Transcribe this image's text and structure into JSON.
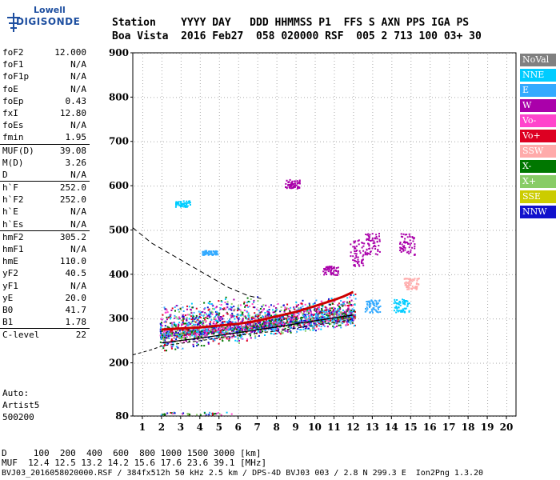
{
  "logo": {
    "line1": "Lowell",
    "line2": "DIGISONDE"
  },
  "header": {
    "line1": "Station    YYYY DAY   DDD HHMMSS P1  FFS S AXN PPS IGA PS",
    "line2": "Boa Vista  2016 Feb27  058 020000 RSF  005 2 713 100 03+ 30"
  },
  "params": [
    [
      {
        "k": "foF2",
        "v": "12.000"
      },
      {
        "k": "foF1",
        "v": "N/A"
      },
      {
        "k": "foF1p",
        "v": "N/A"
      },
      {
        "k": "foE",
        "v": "N/A"
      },
      {
        "k": "foEp",
        "v": "0.43"
      },
      {
        "k": "fxI",
        "v": "12.80"
      },
      {
        "k": "foEs",
        "v": "N/A"
      },
      {
        "k": "fmin",
        "v": "1.95"
      }
    ],
    [
      {
        "k": "MUF(D)",
        "v": "39.08"
      },
      {
        "k": "M(D)",
        "v": "3.26"
      },
      {
        "k": "D",
        "v": "N/A"
      }
    ],
    [
      {
        "k": "h`F",
        "v": "252.0"
      },
      {
        "k": "h`F2",
        "v": "252.0"
      },
      {
        "k": "h`E",
        "v": "N/A"
      },
      {
        "k": "h`Es",
        "v": "N/A"
      }
    ],
    [
      {
        "k": "hmF2",
        "v": "305.2"
      },
      {
        "k": "hmF1",
        "v": "N/A"
      },
      {
        "k": "hmE",
        "v": "110.0"
      },
      {
        "k": "yF2",
        "v": "40.5"
      },
      {
        "k": "yF1",
        "v": "N/A"
      },
      {
        "k": "yE",
        "v": "20.0"
      },
      {
        "k": "B0",
        "v": "41.7"
      },
      {
        "k": "B1",
        "v": "1.78"
      }
    ],
    [
      {
        "k": "C-level",
        "v": "22"
      }
    ]
  ],
  "auto": {
    "l1": "Auto:",
    "l2": "Artist5",
    "l3": "500200"
  },
  "footer": {
    "l1": "D     100  200  400  600  800 1000 1500 3000 [km]",
    "l2": "MUF  12.4 12.5 13.2 14.2 15.6 17.6 23.6 39.1 [MHz]",
    "l3": "BVJ03_2016058020000.RSF / 384fx512h 50 kHz 2.5 km / DPS-4D BVJ03 003 / 2.8 N 299.3 E  Ion2Png 1.3.20"
  },
  "legend": [
    {
      "label": "NoVal",
      "bg": "#808080",
      "fg": "#ffffff"
    },
    {
      "label": "NNE",
      "bg": "#00ccff",
      "fg": "#ffffff"
    },
    {
      "label": "E",
      "bg": "#33aaff",
      "fg": "#ffffff"
    },
    {
      "label": "W",
      "bg": "#aa00aa",
      "fg": "#ffffff"
    },
    {
      "label": "Vo-",
      "bg": "#ff44cc",
      "fg": "#ffffff"
    },
    {
      "label": "Vo+",
      "bg": "#dd0022",
      "fg": "#ffffff"
    },
    {
      "label": "SSW",
      "bg": "#ffaaaa",
      "fg": "#ffffff"
    },
    {
      "label": "X-",
      "bg": "#007700",
      "fg": "#ffffff"
    },
    {
      "label": "X+",
      "bg": "#88cc66",
      "fg": "#ffffff"
    },
    {
      "label": "SSE",
      "bg": "#cccc00",
      "fg": "#ffffff"
    },
    {
      "label": "NNW",
      "bg": "#1111cc",
      "fg": "#ffffff"
    }
  ],
  "chart_data": {
    "type": "scatter",
    "xlabel": "",
    "ylabel": "",
    "x_range": [
      0.5,
      20.5
    ],
    "y_range": [
      80,
      900
    ],
    "x_ticks": [
      1,
      2,
      3,
      4,
      5,
      6,
      7,
      8,
      9,
      10,
      11,
      12,
      13,
      14,
      15,
      16,
      17,
      18,
      19,
      20
    ],
    "y_ticks": [
      80,
      200,
      300,
      400,
      500,
      600,
      700,
      800,
      900
    ],
    "grid": true,
    "legend_placement": "right",
    "series": [
      {
        "name": "trace",
        "style": "dash",
        "x": [
          0.5,
          1.5,
          2.5,
          3.5,
          4.5,
          5.5,
          6.5,
          7.2
        ],
        "y": [
          505,
          470,
          445,
          420,
          395,
          370,
          352,
          345
        ]
      },
      {
        "name": "trace",
        "style": "solid-lower",
        "x": [
          0.5,
          1.5,
          2.0,
          4.0,
          6.0,
          8.0,
          10.0,
          12.0
        ],
        "y": [
          218,
          230,
          238,
          250,
          262,
          272,
          285,
          298
        ]
      },
      {
        "name": "trace",
        "style": "solid",
        "x": [
          2.0,
          4.0,
          6.0,
          8.0,
          10.0,
          12.0
        ],
        "y": [
          245,
          256,
          268,
          281,
          295,
          308
        ]
      },
      {
        "name": "trace",
        "style": "o-trace",
        "x": [
          2.0,
          4.0,
          6.0,
          7.0,
          8.0,
          9.0,
          10.0,
          11.0,
          11.5,
          12.0
        ],
        "y": [
          275,
          280,
          288,
          295,
          305,
          315,
          328,
          342,
          350,
          360
        ]
      }
    ]
  }
}
